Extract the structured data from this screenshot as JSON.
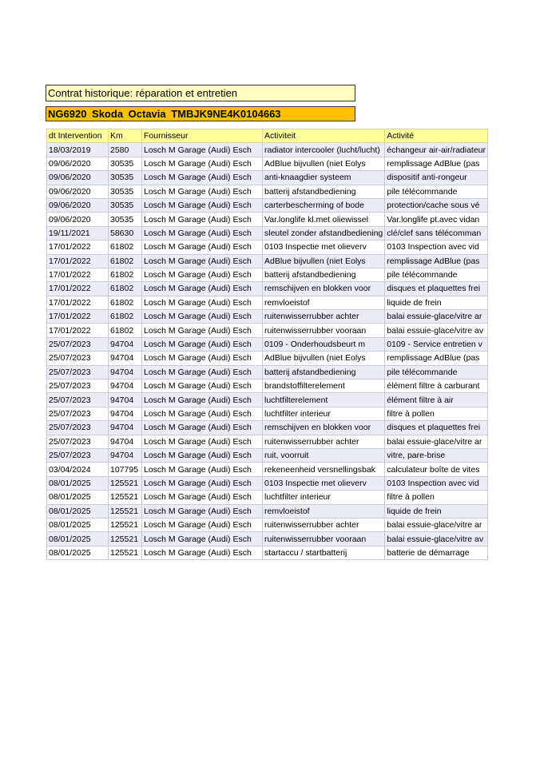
{
  "title": "Contrat historique: réparation et entretien",
  "vehicle": "NG6920  Skoda  Octavia   TMBJK9NE4K0104663",
  "colors": {
    "title_bg": "#ffffc4",
    "vehicle_bg": "#ffc000",
    "header_bg": "#ffff99",
    "row_stripe": "#ececf4"
  },
  "table": {
    "headers": [
      "dt Intervention",
      "Km",
      "Fournisseur",
      "Activiteit",
      "Activité"
    ],
    "rows": [
      [
        "18/03/2019",
        "2580",
        "Losch M Garage (Audi) Esch",
        "radiator intercooler (lucht/lucht)",
        "échangeur air-air/radiateur"
      ],
      [
        "09/06/2020",
        "30535",
        "Losch M Garage (Audi) Esch",
        "AdBlue bijvullen (niet Eolys",
        "remplissage AdBlue (pas"
      ],
      [
        "09/06/2020",
        "30535",
        "Losch M Garage (Audi) Esch",
        "anti-knaagdier systeem",
        "dispositif anti-rongeur"
      ],
      [
        "09/06/2020",
        "30535",
        "Losch M Garage (Audi) Esch",
        "batterij afstandbediening",
        "pile télécommande"
      ],
      [
        "09/06/2020",
        "30535",
        "Losch M Garage (Audi) Esch",
        "carterbescherming of bode",
        "protection/cache sous vé"
      ],
      [
        "09/06/2020",
        "30535",
        "Losch M Garage (Audi) Esch",
        "Var.longlife kl.met oliewissel",
        "Var.longlife pt.avec vidan"
      ],
      [
        "19/11/2021",
        "58630",
        "Losch M Garage (Audi) Esch",
        "sleutel zonder afstandbediening",
        "clé/clef sans télécomman"
      ],
      [
        "17/01/2022",
        "61802",
        "Losch M Garage (Audi) Esch",
        "0103 Inspectie met olieverv",
        "0103 Inspection avec vid"
      ],
      [
        "17/01/2022",
        "61802",
        "Losch M Garage (Audi) Esch",
        "AdBlue bijvullen (niet Eolys",
        "remplissage AdBlue (pas"
      ],
      [
        "17/01/2022",
        "61802",
        "Losch M Garage (Audi) Esch",
        "batterij afstandbediening",
        "pile télécommande"
      ],
      [
        "17/01/2022",
        "61802",
        "Losch M Garage (Audi) Esch",
        "remschijven en blokken voor",
        "disques et plaquettes frei"
      ],
      [
        "17/01/2022",
        "61802",
        "Losch M Garage (Audi) Esch",
        "remvloeistof",
        "liquide de frein"
      ],
      [
        "17/01/2022",
        "61802",
        "Losch M Garage (Audi) Esch",
        "ruitenwisserrubber achter",
        "balai essuie-glace/vitre ar"
      ],
      [
        "17/01/2022",
        "61802",
        "Losch M Garage (Audi) Esch",
        "ruitenwisserrubber vooraan",
        "balai essuie-glace/vitre av"
      ],
      [
        "25/07/2023",
        "94704",
        "Losch M Garage (Audi) Esch",
        "0109 - Onderhoudsbeurt m",
        "0109 - Service entretien v"
      ],
      [
        "25/07/2023",
        "94704",
        "Losch M Garage (Audi) Esch",
        "AdBlue bijvullen (niet Eolys",
        "remplissage AdBlue (pas"
      ],
      [
        "25/07/2023",
        "94704",
        "Losch M Garage (Audi) Esch",
        "batterij afstandbediening",
        "pile télécommande"
      ],
      [
        "25/07/2023",
        "94704",
        "Losch M Garage (Audi) Esch",
        "brandstoffilterelement",
        "élément filtre à carburant"
      ],
      [
        "25/07/2023",
        "94704",
        "Losch M Garage (Audi) Esch",
        "luchtfilterelement",
        "élément filtre à air"
      ],
      [
        "25/07/2023",
        "94704",
        "Losch M Garage (Audi) Esch",
        "luchtfilter interieur",
        "filtre à pollen"
      ],
      [
        "25/07/2023",
        "94704",
        "Losch M Garage (Audi) Esch",
        "remschijven en blokken voor",
        "disques et plaquettes frei"
      ],
      [
        "25/07/2023",
        "94704",
        "Losch M Garage (Audi) Esch",
        "ruitenwisserrubber achter",
        "balai essuie-glace/vitre ar"
      ],
      [
        "25/07/2023",
        "94704",
        "Losch M Garage (Audi) Esch",
        "ruit, voorruit",
        "vitre, pare-brise"
      ],
      [
        "03/04/2024",
        "107795",
        "Losch M Garage (Audi) Esch",
        "rekeneenheid versnellingsbak",
        "calculateur boîte de vites"
      ],
      [
        "08/01/2025",
        "125521",
        "Losch M Garage (Audi) Esch",
        "0103 Inspectie met olieverv",
        "0103 Inspection avec vid"
      ],
      [
        "08/01/2025",
        "125521",
        "Losch M Garage (Audi) Esch",
        "luchtfilter interieur",
        "filtre à pollen"
      ],
      [
        "08/01/2025",
        "125521",
        "Losch M Garage (Audi) Esch",
        "remvloeistof",
        "liquide de frein"
      ],
      [
        "08/01/2025",
        "125521",
        "Losch M Garage (Audi) Esch",
        "ruitenwisserrubber achter",
        "balai essuie-glace/vitre ar"
      ],
      [
        "08/01/2025",
        "125521",
        "Losch M Garage (Audi) Esch",
        "ruitenwisserrubber vooraan",
        "balai essuie-glace/vitre av"
      ],
      [
        "08/01/2025",
        "125521",
        "Losch M Garage (Audi) Esch",
        "startaccu / startbatterij",
        "batterie de démarrage"
      ]
    ]
  }
}
